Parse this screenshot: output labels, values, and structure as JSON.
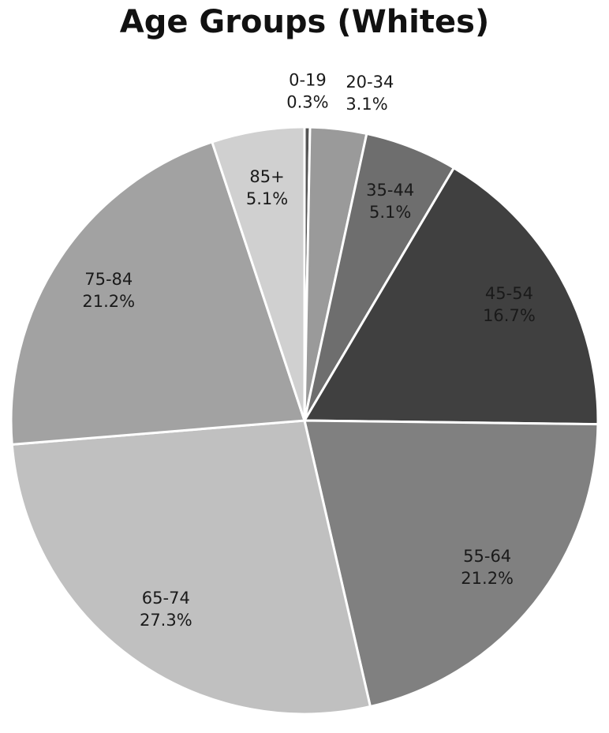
{
  "chart_data": {
    "type": "pie",
    "title": "Age Groups (Whites)",
    "categories": [
      "0-19",
      "20-34",
      "35-44",
      "45-54",
      "55-64",
      "65-74",
      "75-84",
      "85+"
    ],
    "values": [
      0.3,
      3.1,
      5.1,
      16.7,
      21.2,
      27.3,
      21.2,
      5.1
    ],
    "value_labels": [
      "0.3%",
      "3.1%",
      "5.1%",
      "16.7%",
      "21.2%",
      "27.3%",
      "21.2%",
      "5.1%"
    ],
    "colors": [
      "#555555",
      "#9a9a9a",
      "#6e6e6e",
      "#404040",
      "#808080",
      "#c0c0c0",
      "#a2a2a2",
      "#d0d0d0"
    ]
  }
}
